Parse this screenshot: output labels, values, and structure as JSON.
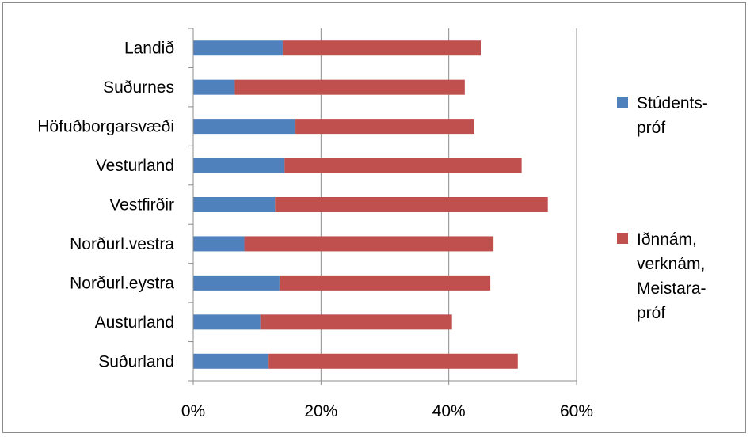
{
  "chart_data": {
    "type": "bar",
    "orientation": "horizontal",
    "stacked": true,
    "categories": [
      "Landið",
      "Suðurnes",
      "Höfuðborgarsvæði",
      "Vesturland",
      "Vestfirðir",
      "Norðurl.vestra",
      "Norðurl.eystra",
      "Austurland",
      "Suðurland"
    ],
    "series": [
      {
        "name": "Stúdents-próf",
        "legend_lines": [
          "Stúdents-",
          "próf"
        ],
        "color": "#4f81bd",
        "values": [
          14.0,
          6.5,
          16.0,
          14.3,
          12.8,
          8.0,
          13.5,
          10.5,
          11.8
        ]
      },
      {
        "name": "Iðnnám, verknám, Meistara-próf",
        "legend_lines": [
          "Iðnnám,",
          "verknám,",
          "Meistara-",
          "próf"
        ],
        "color": "#c0504d",
        "values": [
          31.0,
          36.0,
          28.0,
          37.1,
          42.7,
          39.0,
          33.0,
          30.0,
          39.0
        ]
      }
    ],
    "xlim": [
      0,
      60
    ],
    "xticks": [
      "0%",
      "20%",
      "40%",
      "60%"
    ],
    "grid": "vertical",
    "legend_position": "right"
  }
}
